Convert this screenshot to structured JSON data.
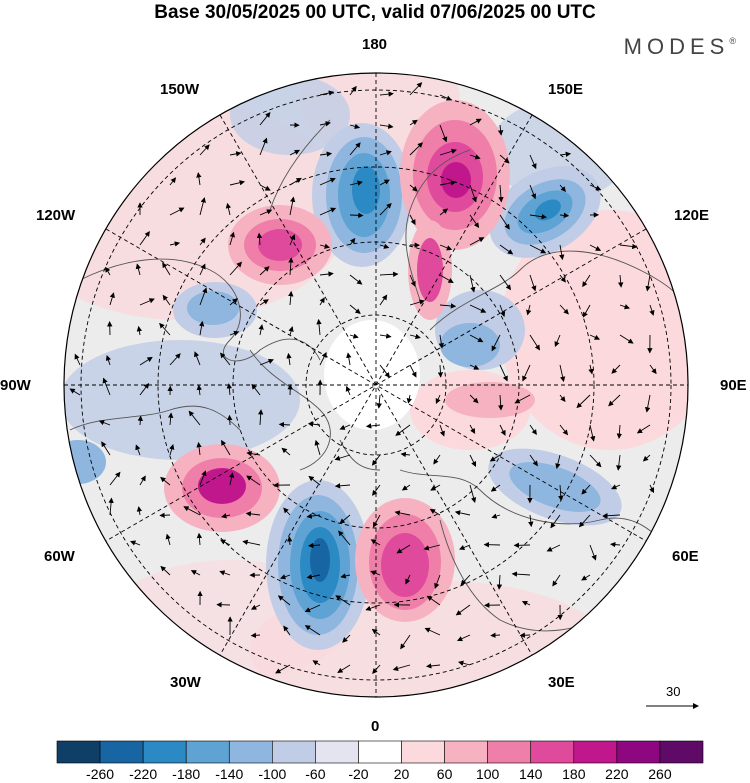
{
  "title": "Base 30/05/2025 00 UTC, valid 07/06/2025 00 UTC",
  "brand": "MODES",
  "brand_mark": "®",
  "map": {
    "projection": "north polar stereographic",
    "longitude_labels": {
      "top": "180",
      "bottom": "0",
      "left": "90W",
      "right": "90E",
      "upper_left_1": "150W",
      "upper_left_2": "120W",
      "upper_right_1": "150E",
      "upper_right_2": "120E",
      "lower_left_1": "60W",
      "lower_left_2": "30W",
      "lower_right_1": "60E",
      "lower_right_2": "30E"
    },
    "reference_vector_label": "30",
    "colors": {
      "coastline": "#555555",
      "land_neutral": "#ececec",
      "grid": "#000000"
    }
  },
  "colorbar": {
    "ticks": [
      "-260",
      "-220",
      "-180",
      "-140",
      "-100",
      "-60",
      "-20",
      "20",
      "60",
      "100",
      "140",
      "180",
      "220",
      "260"
    ],
    "colors": [
      "#0f3f66",
      "#1766a3",
      "#2b8ac4",
      "#5ea3d3",
      "#8fb6de",
      "#c1cde6",
      "#e4e4f0",
      "#ffffff",
      "#fbd9dd",
      "#f6b2c0",
      "#ef7fa8",
      "#e04a9c",
      "#c0188c",
      "#8e0680",
      "#5e0a66"
    ]
  }
}
